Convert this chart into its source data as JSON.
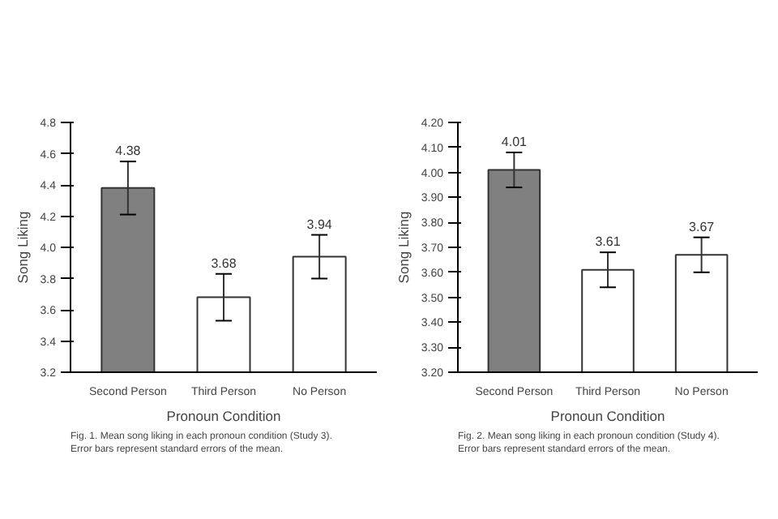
{
  "chart_data": [
    {
      "type": "bar",
      "categories": [
        "Second Person",
        "Third Person",
        "No Person"
      ],
      "values": [
        4.38,
        3.68,
        3.94
      ],
      "colors": [
        "#808080",
        "#ffffff",
        "#ffffff"
      ],
      "errors": [
        0.17,
        0.15,
        0.14
      ],
      "data_labels": true,
      "xlabel": "Pronoun Condition",
      "ylabel": "Song Liking",
      "ylim": [
        3.2,
        4.8
      ],
      "yticks": [
        {
          "value": 3.2,
          "label": "3.2"
        },
        {
          "value": 3.4,
          "label": "3.4"
        },
        {
          "value": 3.6,
          "label": "3.6"
        },
        {
          "value": 3.8,
          "label": "3.8"
        },
        {
          "value": 4.0,
          "label": "4.0"
        },
        {
          "value": 4.2,
          "label": "4.2"
        },
        {
          "value": 4.4,
          "label": "4.4"
        },
        {
          "value": 4.6,
          "label": "4.6"
        },
        {
          "value": 4.8,
          "label": "4.8"
        }
      ],
      "grid": false,
      "annotations": [
        "Fig. 1. Mean song liking in each pronoun condition (Study 3). Error bars represent standard errors of the mean."
      ]
    },
    {
      "type": "bar",
      "categories": [
        "Second Person",
        "Third Person",
        "No Person"
      ],
      "values": [
        4.01,
        3.61,
        3.67
      ],
      "colors": [
        "#808080",
        "#ffffff",
        "#ffffff"
      ],
      "errors": [
        0.07,
        0.07,
        0.07
      ],
      "data_labels": true,
      "xlabel": "Pronoun Condition",
      "ylabel": "Song Liking",
      "ylim": [
        3.2,
        4.2
      ],
      "yticks": [
        {
          "value": 3.2,
          "label": "3.20"
        },
        {
          "value": 3.3,
          "label": "3.30"
        },
        {
          "value": 3.4,
          "label": "3.40"
        },
        {
          "value": 3.5,
          "label": "3.50"
        },
        {
          "value": 3.6,
          "label": "3.60"
        },
        {
          "value": 3.7,
          "label": "3.70"
        },
        {
          "value": 3.8,
          "label": "3.80"
        },
        {
          "value": 3.9,
          "label": "3.90"
        },
        {
          "value": 4.0,
          "label": "4.00"
        },
        {
          "value": 4.1,
          "label": "4.10"
        },
        {
          "value": 4.2,
          "label": "4.20"
        }
      ],
      "grid": false,
      "annotations": [
        "Fig. 2. Mean song liking in each pronoun condition (Study 4). Error bars represent standard errors of the mean."
      ]
    }
  ]
}
